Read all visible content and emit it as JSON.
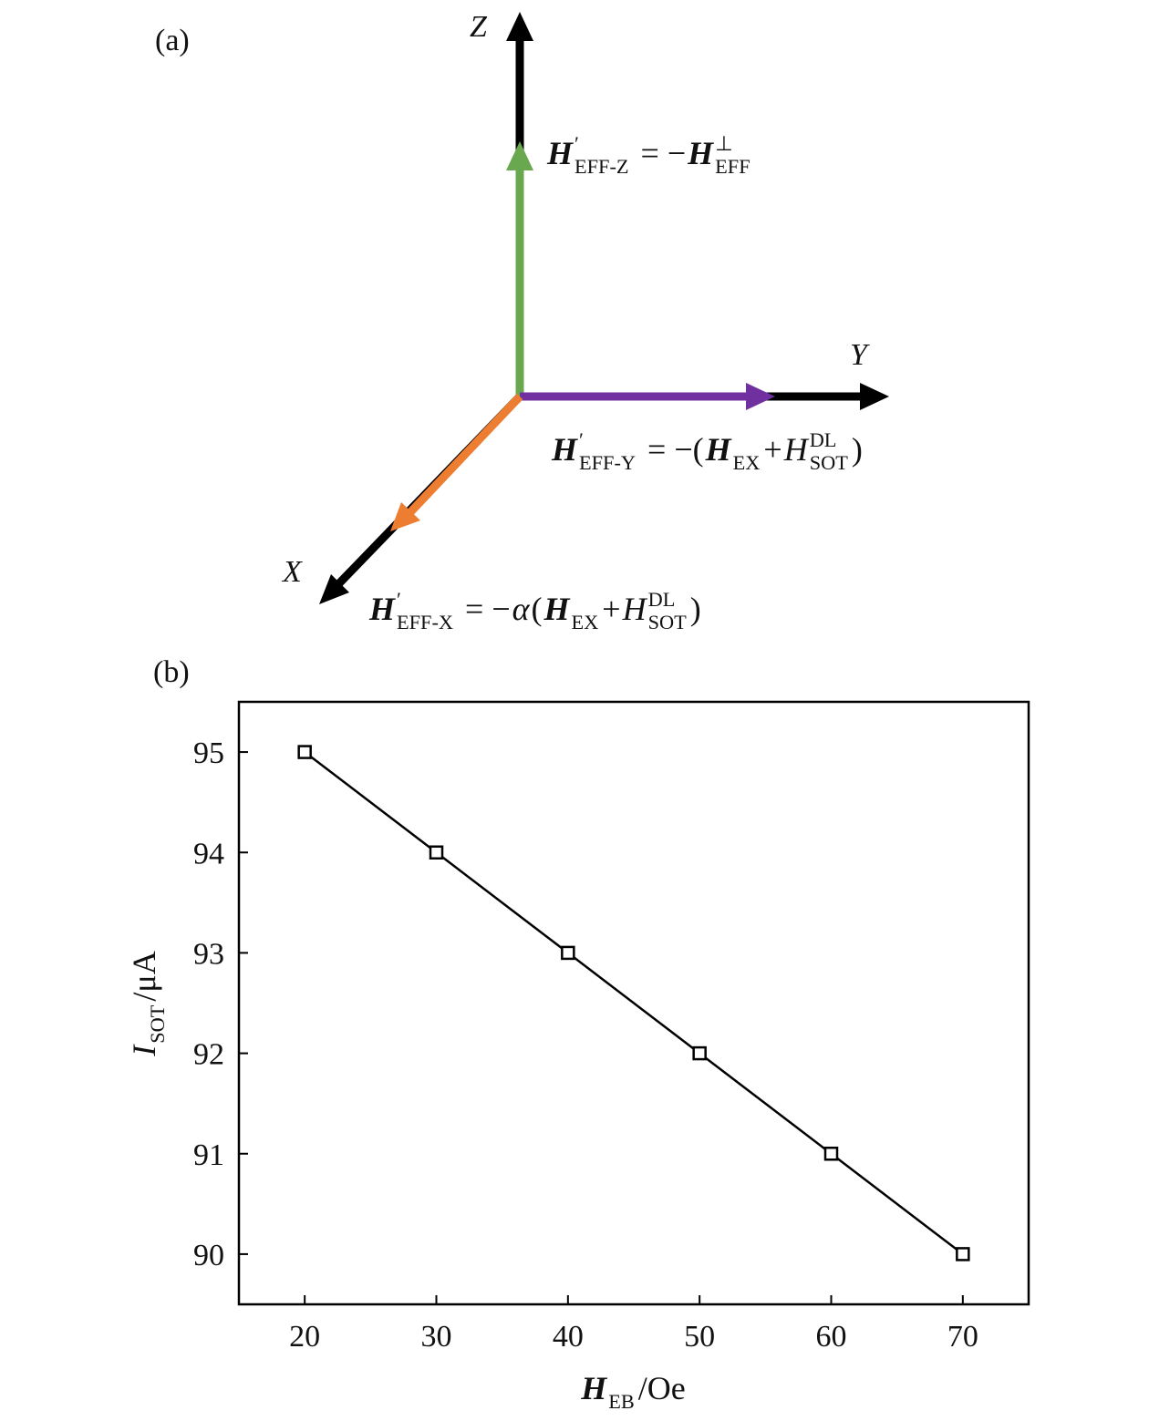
{
  "diagram": {
    "label": "(a)",
    "axes": {
      "z": "Z",
      "y": "Y",
      "x": "X"
    },
    "equations": {
      "z": {
        "segments": [
          {
            "t": "H",
            "b": true,
            "sup": "′",
            "sub": "EFF-Z"
          },
          {
            "t": " = −"
          },
          {
            "t": "H",
            "b": true,
            "sup": "⊥",
            "sub": "EFF"
          }
        ]
      },
      "y": {
        "segments": [
          {
            "t": "H",
            "b": true,
            "sup": "′",
            "sub": "EFF-Y"
          },
          {
            "t": " = −("
          },
          {
            "t": "H",
            "b": true,
            "sub": "EX"
          },
          {
            "t": "+"
          },
          {
            "t": "H",
            "i": true,
            "sup": "DL",
            "sub": "SOT"
          },
          {
            "t": ")"
          }
        ]
      },
      "x": {
        "segments": [
          {
            "t": "H",
            "b": true,
            "sup": "′",
            "sub": "EFF-X"
          },
          {
            "t": " = −"
          },
          {
            "t": "α",
            "i": true
          },
          {
            "t": "("
          },
          {
            "t": "H",
            "b": true,
            "sub": "EX"
          },
          {
            "t": "+"
          },
          {
            "t": "H",
            "i": true,
            "sup": "DL",
            "sub": "SOT"
          },
          {
            "t": ")"
          }
        ]
      }
    }
  },
  "chart_data": {
    "type": "line",
    "label": "(b)",
    "x_label": {
      "segments": [
        {
          "t": "H",
          "b": true,
          "sub": "EB"
        },
        {
          "t": "/Oe"
        }
      ]
    },
    "y_label": {
      "segments": [
        {
          "t": "I",
          "i": true,
          "sub": "SOT"
        },
        {
          "t": "/μA"
        }
      ]
    },
    "x": [
      20,
      30,
      40,
      50,
      60,
      70
    ],
    "values": [
      95,
      94,
      93,
      92,
      91,
      90
    ],
    "color": "#000000",
    "marker": "square",
    "xlim": [
      15,
      75
    ],
    "ylim": [
      89.5,
      95.5
    ],
    "xticks": [
      20,
      30,
      40,
      50,
      60,
      70
    ],
    "yticks": [
      90,
      91,
      92,
      93,
      94,
      95
    ]
  }
}
